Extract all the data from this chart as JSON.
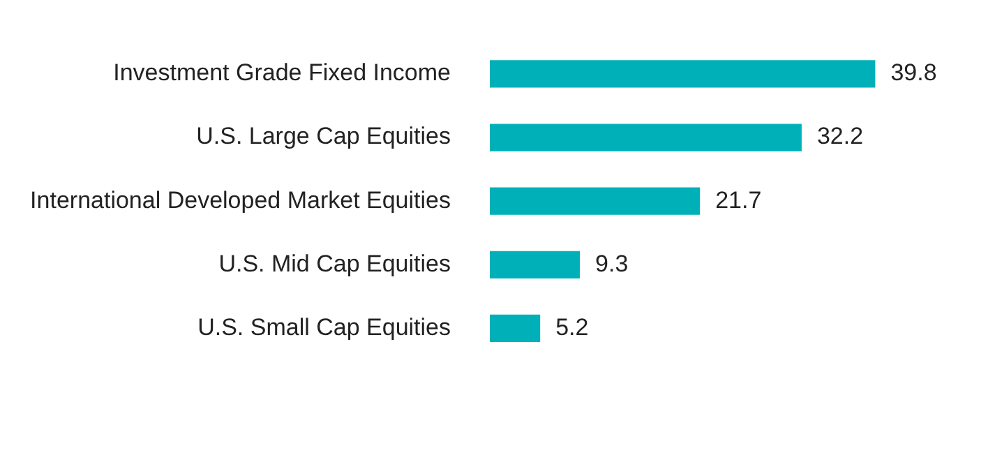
{
  "chart_data": {
    "type": "bar",
    "orientation": "horizontal",
    "categories": [
      "Investment Grade Fixed Income",
      "U.S. Large Cap Equities",
      "International Developed Market Equities",
      "U.S. Mid Cap Equities",
      "U.S. Small Cap Equities"
    ],
    "values": [
      39.8,
      32.2,
      21.7,
      9.3,
      5.2
    ],
    "color": "#00b0b9",
    "data_labels": true,
    "legend": false,
    "tick_labels": "y"
  }
}
